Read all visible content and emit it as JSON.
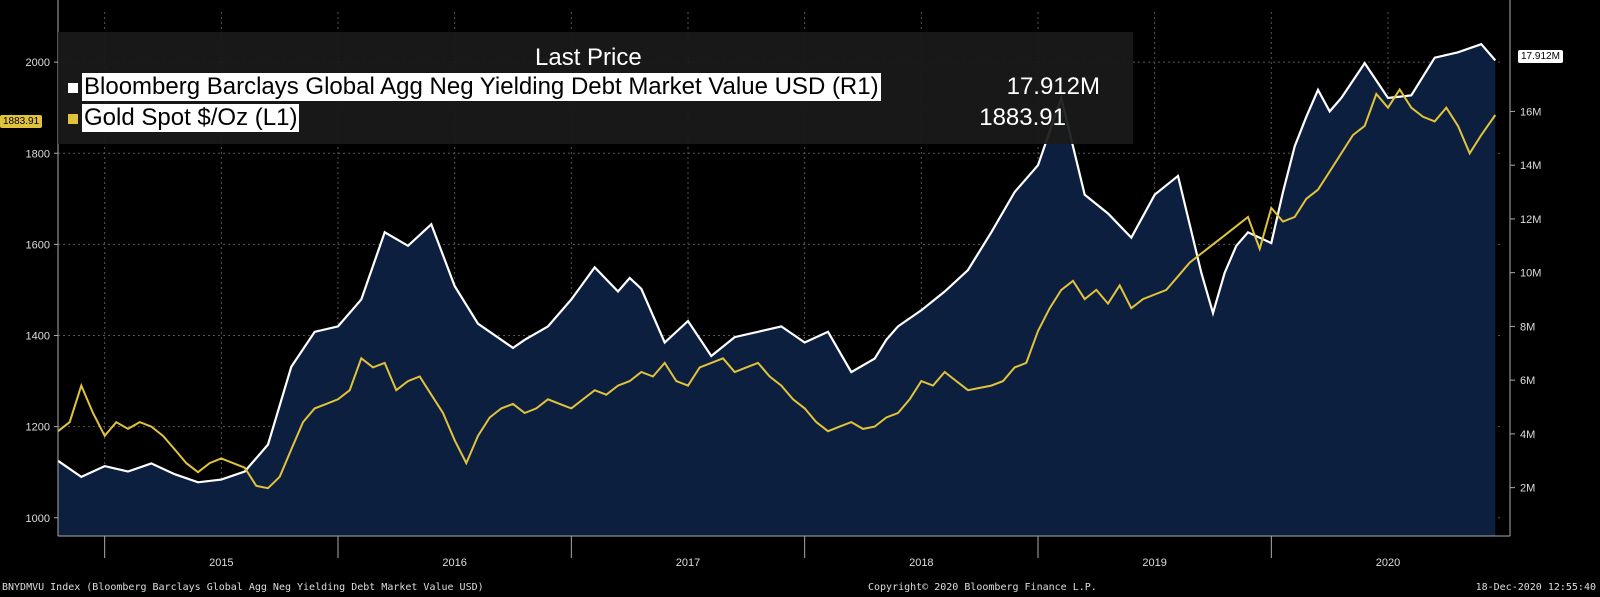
{
  "chart_data": {
    "type": "line",
    "title": "Last Price",
    "x_ticks": [
      "2015",
      "2016",
      "2017",
      "2018",
      "2019",
      "2020"
    ],
    "x_range": [
      2014.8,
      2020.98
    ],
    "left_axis": {
      "name": "Gold Spot $/Oz (L1)",
      "ylim": [
        960,
        2110
      ],
      "ticks": [
        "1000",
        "1200",
        "1400",
        "1600",
        "1800",
        "2000"
      ],
      "tick_values": [
        1000,
        1200,
        1400,
        1600,
        1800,
        2000
      ]
    },
    "right_axis": {
      "name": "Bloomberg Barclays Global Agg Neg Yielding Debt Market Value USD (R1)",
      "ylim": [
        0.2,
        19.7
      ],
      "ticks": [
        "2M",
        "4M",
        "6M",
        "8M",
        "10M",
        "12M",
        "14M",
        "16M"
      ],
      "tick_values": [
        2,
        4,
        6,
        8,
        10,
        12,
        14,
        16
      ]
    },
    "series": [
      {
        "name": "Bloomberg Barclays Global Agg Neg Yielding Debt Market Value USD (R1)",
        "axis": "right",
        "color": "#ffffff",
        "fill": "#0d1f3f",
        "last_value": "17.912M",
        "x": [
          2014.8,
          2014.9,
          2015.0,
          2015.1,
          2015.2,
          2015.3,
          2015.4,
          2015.5,
          2015.6,
          2015.7,
          2015.8,
          2015.9,
          2016.0,
          2016.1,
          2016.2,
          2016.3,
          2016.4,
          2016.5,
          2016.6,
          2016.7,
          2016.75,
          2016.8,
          2016.9,
          2017.0,
          2017.1,
          2017.2,
          2017.25,
          2017.3,
          2017.4,
          2017.5,
          2017.6,
          2017.7,
          2017.8,
          2017.9,
          2018.0,
          2018.1,
          2018.2,
          2018.3,
          2018.35,
          2018.4,
          2018.5,
          2018.6,
          2018.7,
          2018.8,
          2018.9,
          2019.0,
          2019.1,
          2019.2,
          2019.3,
          2019.4,
          2019.5,
          2019.6,
          2019.7,
          2019.75,
          2019.8,
          2019.85,
          2019.9,
          2020.0,
          2020.05,
          2020.1,
          2020.15,
          2020.2,
          2020.25,
          2020.3,
          2020.4,
          2020.5,
          2020.6,
          2020.7,
          2020.8,
          2020.9,
          2020.96
        ],
        "values": [
          3.0,
          2.4,
          2.8,
          2.6,
          2.9,
          2.5,
          2.2,
          2.3,
          2.6,
          3.6,
          6.5,
          7.8,
          8.0,
          9.0,
          11.5,
          11.0,
          11.8,
          9.5,
          8.1,
          7.5,
          7.2,
          7.5,
          8.0,
          9.0,
          10.2,
          9.3,
          9.8,
          9.4,
          7.4,
          8.2,
          6.9,
          7.6,
          7.8,
          8.0,
          7.4,
          7.8,
          6.3,
          6.8,
          7.5,
          8.0,
          8.6,
          9.3,
          10.1,
          11.5,
          13.0,
          14.0,
          16.5,
          12.9,
          12.2,
          11.3,
          12.9,
          13.6,
          10.0,
          8.5,
          10.0,
          11.0,
          11.5,
          11.1,
          13.0,
          14.7,
          15.8,
          16.8,
          16.0,
          16.5,
          17.8,
          16.5,
          16.6,
          18.0,
          18.2,
          18.5,
          17.9
        ]
      },
      {
        "name": "Gold Spot $/Oz (L1)",
        "axis": "left",
        "color": "#e1c33b",
        "last_value": "1883.91",
        "x": [
          2014.8,
          2014.85,
          2014.9,
          2014.95,
          2015.0,
          2015.05,
          2015.1,
          2015.15,
          2015.2,
          2015.25,
          2015.3,
          2015.35,
          2015.4,
          2015.45,
          2015.5,
          2015.55,
          2015.6,
          2015.65,
          2015.7,
          2015.75,
          2015.8,
          2015.85,
          2015.9,
          2015.95,
          2016.0,
          2016.05,
          2016.1,
          2016.15,
          2016.2,
          2016.25,
          2016.3,
          2016.35,
          2016.4,
          2016.45,
          2016.5,
          2016.55,
          2016.6,
          2016.65,
          2016.7,
          2016.75,
          2016.8,
          2016.85,
          2016.9,
          2016.95,
          2017.0,
          2017.05,
          2017.1,
          2017.15,
          2017.2,
          2017.25,
          2017.3,
          2017.35,
          2017.4,
          2017.45,
          2017.5,
          2017.55,
          2017.6,
          2017.65,
          2017.7,
          2017.75,
          2017.8,
          2017.85,
          2017.9,
          2017.95,
          2018.0,
          2018.05,
          2018.1,
          2018.15,
          2018.2,
          2018.25,
          2018.3,
          2018.35,
          2018.4,
          2018.45,
          2018.5,
          2018.55,
          2018.6,
          2018.65,
          2018.7,
          2018.75,
          2018.8,
          2018.85,
          2018.9,
          2018.95,
          2019.0,
          2019.05,
          2019.1,
          2019.15,
          2019.2,
          2019.25,
          2019.3,
          2019.35,
          2019.4,
          2019.45,
          2019.5,
          2019.55,
          2019.6,
          2019.65,
          2019.7,
          2019.75,
          2019.8,
          2019.85,
          2019.9,
          2019.95,
          2020.0,
          2020.05,
          2020.1,
          2020.15,
          2020.2,
          2020.25,
          2020.3,
          2020.35,
          2020.4,
          2020.45,
          2020.5,
          2020.55,
          2020.6,
          2020.65,
          2020.7,
          2020.75,
          2020.8,
          2020.85,
          2020.9,
          2020.96
        ],
        "values": [
          1190,
          1210,
          1290,
          1230,
          1180,
          1210,
          1195,
          1210,
          1200,
          1180,
          1150,
          1120,
          1100,
          1120,
          1130,
          1120,
          1110,
          1070,
          1065,
          1090,
          1150,
          1210,
          1240,
          1250,
          1260,
          1280,
          1350,
          1330,
          1340,
          1280,
          1300,
          1310,
          1270,
          1230,
          1170,
          1120,
          1180,
          1220,
          1240,
          1250,
          1230,
          1240,
          1260,
          1250,
          1240,
          1260,
          1280,
          1270,
          1290,
          1300,
          1320,
          1310,
          1340,
          1300,
          1290,
          1330,
          1340,
          1350,
          1320,
          1330,
          1340,
          1310,
          1290,
          1260,
          1240,
          1210,
          1190,
          1200,
          1210,
          1195,
          1200,
          1220,
          1230,
          1260,
          1300,
          1290,
          1320,
          1300,
          1280,
          1285,
          1290,
          1300,
          1330,
          1340,
          1410,
          1460,
          1500,
          1520,
          1480,
          1500,
          1470,
          1510,
          1460,
          1480,
          1490,
          1500,
          1530,
          1560,
          1580,
          1600,
          1620,
          1640,
          1660,
          1590,
          1680,
          1650,
          1660,
          1700,
          1720,
          1760,
          1800,
          1840,
          1860,
          1930,
          1900,
          1940,
          1900,
          1880,
          1870,
          1900,
          1860,
          1800,
          1840,
          1884
        ]
      }
    ]
  },
  "legend": {
    "title": "Last Price",
    "series1_label": "Bloomberg Barclays Global Agg Neg Yielding Debt Market Value USD  (R1)",
    "series1_value": "17.912M",
    "series2_label": "Gold Spot  $/Oz  (L1)",
    "series2_value": "1883.91"
  },
  "tags": {
    "left_last": "1883.91",
    "right_last": "17.912M"
  },
  "footer": {
    "left": "BNYDMVU Index (Bloomberg Barclays Global Agg Neg Yielding Debt Market Value USD)",
    "mid": "Copyright© 2020 Bloomberg Finance L.P.",
    "right": "18-Dec-2020 12:55:40"
  }
}
